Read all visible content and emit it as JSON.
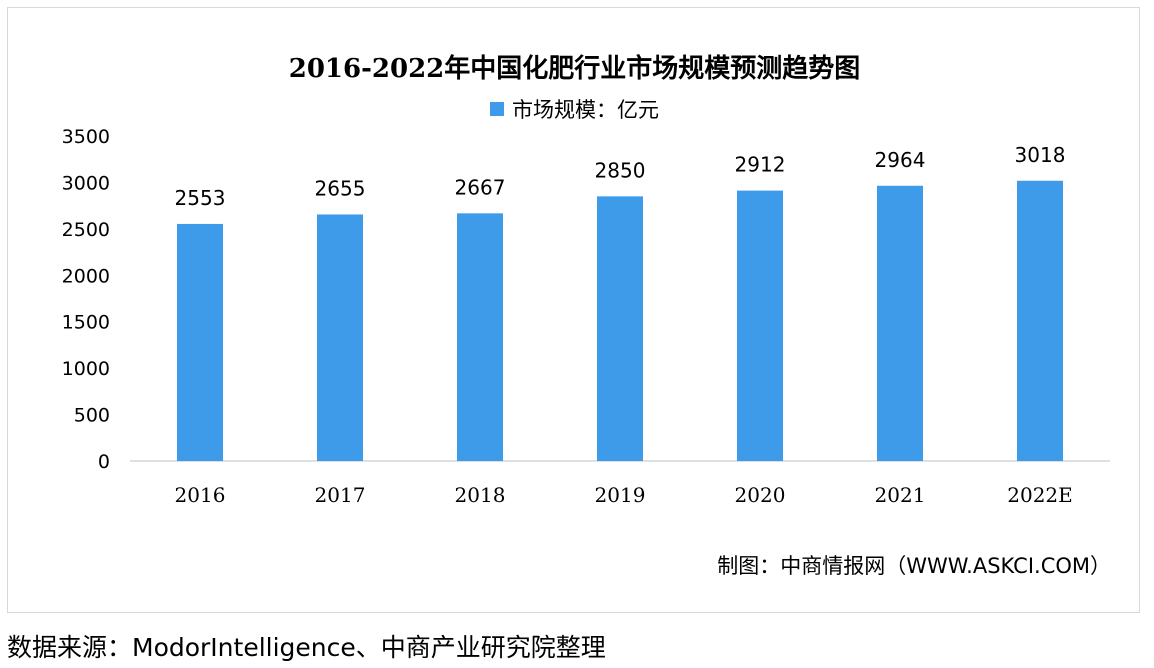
{
  "chart_title": "2016-2022年中国化肥行业市场规模预测趋势图",
  "legend_label": "市场规模：亿元",
  "credit": "制图：中商情报网（WWW.ASKCI.COM）",
  "source": "数据来源：ModorIntelligence、中商产业研究院整理",
  "colors": {
    "bar": "#3d9be9",
    "axis": "#bfbfbf"
  },
  "chart_data": {
    "type": "bar",
    "title": "2016-2022年中国化肥行业市场规模预测趋势图",
    "categories": [
      "2016",
      "2017",
      "2018",
      "2019",
      "2020",
      "2021",
      "2022E"
    ],
    "series": [
      {
        "name": "市场规模：亿元",
        "values": [
          2553,
          2655,
          2667,
          2850,
          2912,
          2964,
          3018
        ]
      }
    ],
    "yticks": [
      0,
      500,
      1000,
      1500,
      2000,
      2500,
      3000,
      3500
    ],
    "ylim": [
      0,
      3500
    ],
    "xlabel": "",
    "ylabel": "",
    "grid": false,
    "legend_position": "top"
  }
}
